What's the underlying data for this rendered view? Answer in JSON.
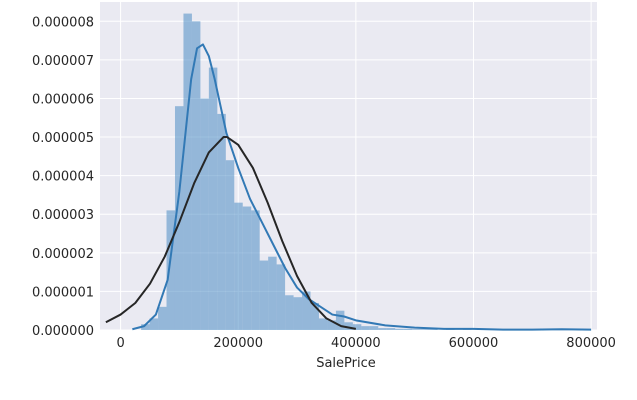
{
  "chart_data": {
    "type": "bar",
    "xlabel": "SalePrice",
    "ylabel": "",
    "xlim": [
      -35000,
      810000
    ],
    "ylim": [
      0,
      8.5e-06
    ],
    "grid": true,
    "background_color": "#eaeaf2",
    "grid_color": "#ffffff",
    "x_ticks": [
      0,
      200000,
      400000,
      600000,
      800000
    ],
    "x_tick_labels": [
      "0",
      "200000",
      "400000",
      "600000",
      "800000"
    ],
    "y_ticks": [
      0,
      1e-06,
      2e-06,
      3e-06,
      4e-06,
      5e-06,
      6e-06,
      7e-06,
      8e-06
    ],
    "y_tick_labels": [
      "0.000000",
      "0.000001",
      "0.000002",
      "0.000003",
      "0.000004",
      "0.000005",
      "0.000006",
      "0.000007",
      "0.000008"
    ],
    "histogram": {
      "color": "#4c8cc4",
      "opacity": 0.55,
      "bin_edges": [
        34900,
        49300,
        63700,
        78100,
        92500,
        106900,
        121300,
        135700,
        150100,
        164500,
        178900,
        193300,
        207700,
        222100,
        236500,
        250900,
        265300,
        279700,
        294100,
        308500,
        322900,
        337300,
        351700,
        366100,
        380500,
        394900,
        409300,
        423700,
        438100,
        452500,
        466900,
        481300,
        495700,
        510100,
        524500,
        538900,
        553300,
        567700,
        582100,
        596500,
        610900,
        625300,
        639700,
        654100,
        668500,
        682900,
        697300,
        711700,
        726100,
        740500,
        754900
      ],
      "values": [
        1.5e-07,
        3e-07,
        6e-07,
        3.1e-06,
        5.8e-06,
        8.2e-06,
        8e-06,
        6e-06,
        6.8e-06,
        5.6e-06,
        4.4e-06,
        3.3e-06,
        3.2e-06,
        3.1e-06,
        1.8e-06,
        1.9e-06,
        1.7e-06,
        9e-07,
        8.5e-07,
        1e-06,
        7e-07,
        3e-07,
        2.5e-07,
        5e-07,
        2e-07,
        1.5e-07,
        1e-07,
        1e-07,
        5e-08,
        5e-08,
        3e-08,
        3e-08,
        2e-08,
        2e-08,
        2e-08,
        0,
        1e-08,
        0,
        1e-08,
        0,
        0,
        0,
        0,
        0,
        0,
        0,
        0,
        0,
        2e-08,
        0
      ]
    },
    "series": [
      {
        "type": "line",
        "color": "#3279b5",
        "x": [
          20000,
          40000,
          60000,
          80000,
          100000,
          120000,
          130000,
          140000,
          150000,
          160000,
          170000,
          180000,
          200000,
          220000,
          240000,
          260000,
          280000,
          300000,
          320000,
          340000,
          360000,
          380000,
          400000,
          450000,
          500000,
          550000,
          600000,
          650000,
          700000,
          750000,
          800000
        ],
        "y": [
          2e-08,
          1e-07,
          4e-07,
          1.3e-06,
          3.6e-06,
          6.5e-06,
          7.3e-06,
          7.4e-06,
          7.1e-06,
          6.5e-06,
          5.8e-06,
          5.1e-06,
          4.2e-06,
          3.4e-06,
          2.8e-06,
          2.2e-06,
          1.6e-06,
          1.1e-06,
          8e-07,
          6e-07,
          4e-07,
          3.5e-07,
          2.5e-07,
          1.2e-07,
          6e-08,
          3e-08,
          3e-08,
          1e-08,
          1e-08,
          2e-08,
          1e-08
        ]
      },
      {
        "type": "line",
        "color": "#262626",
        "x": [
          -25000,
          0,
          25000,
          50000,
          75000,
          100000,
          125000,
          150000,
          175000,
          181000,
          200000,
          225000,
          250000,
          275000,
          300000,
          325000,
          350000,
          375000,
          400000
        ],
        "y": [
          2e-07,
          4e-07,
          7e-07,
          1.2e-06,
          1.9e-06,
          2.8e-06,
          3.8e-06,
          4.6e-06,
          5e-06,
          5e-06,
          4.8e-06,
          4.2e-06,
          3.3e-06,
          2.3e-06,
          1.4e-06,
          7e-07,
          3e-07,
          1e-07,
          3e-08
        ]
      }
    ]
  }
}
